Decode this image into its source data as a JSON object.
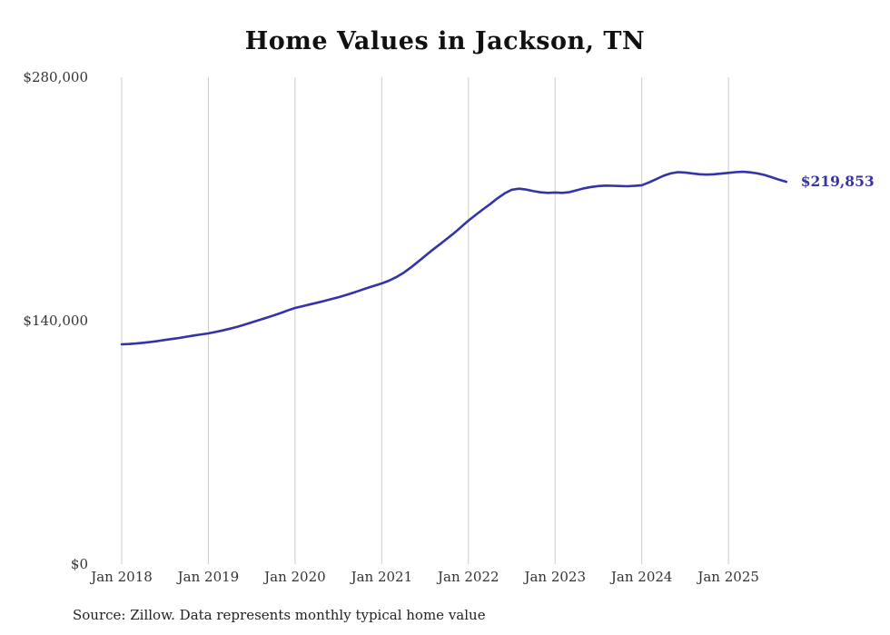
{
  "page": {
    "background": "#ffffff"
  },
  "source_note": "Source: Zillow. Data represents monthly typical home value",
  "chart_data": {
    "type": "line",
    "title": "Home Values in Jackson, TN",
    "xlabel": "",
    "ylabel": "",
    "ylim": [
      0,
      280000
    ],
    "yticks": [
      {
        "value": 0,
        "label": "$0"
      },
      {
        "value": 140000,
        "label": "$140,000"
      },
      {
        "value": 280000,
        "label": "$280,000"
      }
    ],
    "xticks": [
      {
        "month_index": 0,
        "label": "Jan 2018"
      },
      {
        "month_index": 12,
        "label": "Jan 2019"
      },
      {
        "month_index": 24,
        "label": "Jan 2020"
      },
      {
        "month_index": 36,
        "label": "Jan 2021"
      },
      {
        "month_index": 48,
        "label": "Jan 2022"
      },
      {
        "month_index": 60,
        "label": "Jan 2023"
      },
      {
        "month_index": 72,
        "label": "Jan 2024"
      },
      {
        "month_index": 84,
        "label": "Jan 2025"
      }
    ],
    "grid": "vertical-only",
    "legend": "none",
    "line_color": "#3333aa",
    "gridline_color": "#cccccc",
    "tick_label_color": "#333333",
    "end_label": "$219,853",
    "series_name": "Typical home value",
    "months": [
      "2018-01",
      "2018-02",
      "2018-03",
      "2018-04",
      "2018-05",
      "2018-06",
      "2018-07",
      "2018-08",
      "2018-09",
      "2018-10",
      "2018-11",
      "2018-12",
      "2019-01",
      "2019-02",
      "2019-03",
      "2019-04",
      "2019-05",
      "2019-06",
      "2019-07",
      "2019-08",
      "2019-09",
      "2019-10",
      "2019-11",
      "2019-12",
      "2020-01",
      "2020-02",
      "2020-03",
      "2020-04",
      "2020-05",
      "2020-06",
      "2020-07",
      "2020-08",
      "2020-09",
      "2020-10",
      "2020-11",
      "2020-12",
      "2021-01",
      "2021-02",
      "2021-03",
      "2021-04",
      "2021-05",
      "2021-06",
      "2021-07",
      "2021-08",
      "2021-09",
      "2021-10",
      "2021-11",
      "2021-12",
      "2022-01",
      "2022-02",
      "2022-03",
      "2022-04",
      "2022-05",
      "2022-06",
      "2022-07",
      "2022-08",
      "2022-09",
      "2022-10",
      "2022-11",
      "2022-12",
      "2023-01",
      "2023-02",
      "2023-03",
      "2023-04",
      "2023-05",
      "2023-06",
      "2023-07",
      "2023-08",
      "2023-09",
      "2023-10",
      "2023-11",
      "2023-12",
      "2024-01",
      "2024-02",
      "2024-03",
      "2024-04",
      "2024-05",
      "2024-06",
      "2024-07",
      "2024-08",
      "2024-09",
      "2024-10",
      "2024-11",
      "2024-12",
      "2025-01",
      "2025-02",
      "2025-03",
      "2025-04",
      "2025-05",
      "2025-06",
      "2025-07",
      "2025-08",
      "2025-09"
    ],
    "values": [
      126400,
      126600,
      126900,
      127300,
      127800,
      128300,
      128900,
      129500,
      130100,
      130800,
      131500,
      132100,
      132700,
      133500,
      134400,
      135400,
      136500,
      137700,
      139000,
      140300,
      141600,
      143000,
      144400,
      145900,
      147300,
      148300,
      149300,
      150300,
      151300,
      152400,
      153500,
      154700,
      156000,
      157400,
      158800,
      160100,
      161400,
      163000,
      165000,
      167500,
      170500,
      173800,
      177200,
      180600,
      183800,
      187000,
      190300,
      193900,
      197500,
      200800,
      204000,
      207000,
      210300,
      213200,
      215300,
      215900,
      215400,
      214500,
      213800,
      213500,
      213700,
      213500,
      213900,
      215000,
      216100,
      216900,
      217400,
      217700,
      217600,
      217400,
      217300,
      217500,
      217900,
      219500,
      221400,
      223300,
      224700,
      225400,
      225200,
      224700,
      224200,
      224000,
      224200,
      224600,
      225000,
      225400,
      225600,
      225300,
      224700,
      223800,
      222500,
      221100,
      219853
    ]
  }
}
